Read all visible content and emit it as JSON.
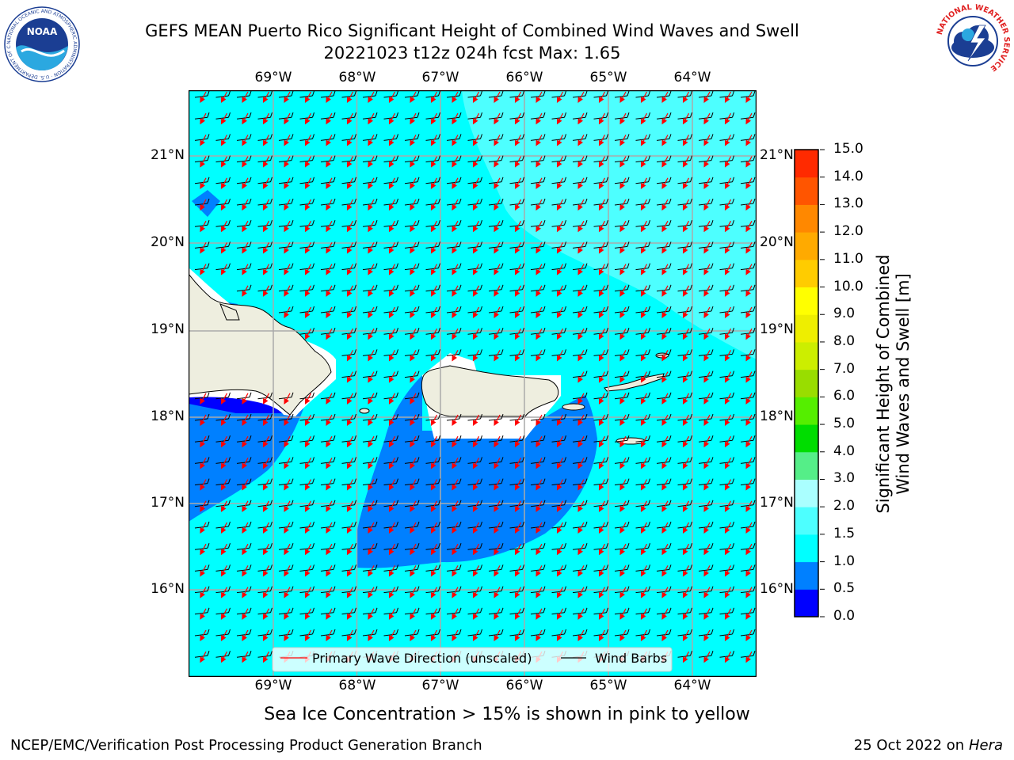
{
  "header": {
    "title_line1": "GEFS MEAN Puerto Rico Significant Height of Combined Wind Waves and Swell",
    "title_line2": "20221023 t12z 024h fcst   Max: 1.65"
  },
  "logos": {
    "noaa_text": "NOAA",
    "noaa_ring": "NATIONAL OCEANIC AND ATMOSPHERIC ADMINISTRATION · U.S. DEPARTMENT OF COMMERCE",
    "nws_ring": "NATIONAL WEATHER SERVICE"
  },
  "map": {
    "lon_labels": [
      "69°W",
      "68°W",
      "67°W",
      "66°W",
      "65°W",
      "64°W"
    ],
    "lat_labels": [
      "21°N",
      "20°N",
      "19°N",
      "18°N",
      "17°N",
      "16°N"
    ],
    "legend": {
      "wave_direction": "Primary Wave Direction (unscaled)",
      "wind_barbs": "Wind Barbs"
    },
    "colors": {
      "ocean_1_0_to_1_5": "#00ffff",
      "ocean_0_5_to_1_0": "#0080ff",
      "ocean_1_5_to_2_0": "#4dffff",
      "ocean_0_0_to_0_5": "#0000ff",
      "land": "#eeeedf",
      "wave_arrow": "#ff0000",
      "wind_barb": "#000000"
    }
  },
  "colorbar": {
    "title_line1": "Significant Height of Combined",
    "title_line2": "Wind Waves and Swell [m]",
    "tick_labels": [
      "15.0",
      "14.0",
      "13.0",
      "12.0",
      "11.0",
      "10.0",
      "9.0",
      "8.0",
      "7.0",
      "6.0",
      "5.0",
      "4.0",
      "3.0",
      "2.0",
      "1.5",
      "1.0",
      "0.5",
      "0.0"
    ],
    "level_colors": [
      "#0000ff",
      "#0080ff",
      "#00ffff",
      "#4dffff",
      "#aaffff",
      "#55ee88",
      "#00dd00",
      "#55ee00",
      "#99dd00",
      "#ccee00",
      "#eeee00",
      "#ffff00",
      "#ffcc00",
      "#ffaa00",
      "#ff8800",
      "#ff5500",
      "#ff2a00",
      "#ff0000"
    ]
  },
  "sea_ice_note": "Sea Ice Concentration > 15% is shown in pink to yellow",
  "footer": {
    "left": "NCEP/EMC/Verification Post Processing Product Generation Branch",
    "right_prefix": "25 Oct 2022 on ",
    "right_host": "Hera"
  }
}
